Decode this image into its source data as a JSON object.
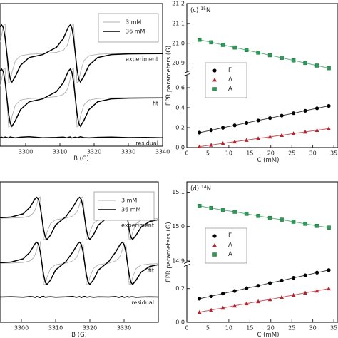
{
  "chart_data": [
    {
      "type": "line",
      "x": [
        3292.5,
        3293,
        3293.5,
        3294,
        3294.5,
        3295,
        3295.5,
        3296,
        3297,
        3298.5,
        3301,
        3305,
        3309,
        3311,
        3312,
        3312.5,
        3313,
        3313.5,
        3314,
        3314.5,
        3315,
        3315.5,
        3316,
        3317,
        3318.5,
        3321,
        3325,
        3330,
        3335,
        3340
      ],
      "xlim": [
        3292.5,
        3340
      ],
      "xticks": [
        3300,
        3310,
        3320,
        3330,
        3340
      ],
      "xlabel": "B (G)",
      "ylim": [
        0,
        100
      ],
      "legend": "upper right",
      "series": [
        {
          "name": "3 mM",
          "color": "#b0b0b0",
          "values": [
            73.1,
            78.1,
            84.8,
            85.4,
            65,
            44.6,
            45.2,
            51.9,
            59.9,
            63.4,
            64.4,
            64.9,
            65.8,
            67.2,
            70.1,
            73.1,
            78.1,
            84.8,
            85.4,
            65,
            44.6,
            45.2,
            51.9,
            59.9,
            63.4,
            64.4,
            64.9,
            65,
            65,
            65
          ]
        },
        {
          "name": "36 mM",
          "color": "#000000",
          "values": [
            83.7,
            85,
            83,
            76,
            65,
            54,
            47,
            45,
            49,
            56.7,
            62.1,
            64.2,
            69.3,
            75.5,
            81,
            83.7,
            85,
            83,
            76,
            65,
            54,
            47,
            45,
            49,
            56.7,
            62.1,
            64.2,
            64.7,
            64.8,
            64.9
          ]
        }
      ],
      "fit_series": [
        {
          "color": "#b0b0b0",
          "values": [
            42.1,
            47.1,
            53.8,
            54.4,
            34,
            13.6,
            14.2,
            20.9,
            28.9,
            32.4,
            33.4,
            33.9,
            34.8,
            36.2,
            39.1,
            42.1,
            47.1,
            53.8,
            54.4,
            34,
            13.6,
            14.2,
            20.9,
            28.9,
            32.4,
            33.4,
            33.9,
            34,
            34,
            34
          ]
        },
        {
          "color": "#000000",
          "values": [
            52.7,
            54,
            52,
            45,
            34,
            23,
            16,
            14,
            18,
            25.7,
            31.1,
            33.2,
            38.3,
            44.5,
            50,
            52.7,
            54,
            52,
            45,
            34,
            23,
            16,
            14,
            18,
            25.7,
            31.1,
            33.2,
            33.7,
            33.8,
            33.9
          ]
        }
      ],
      "residual": {
        "color": "#000000",
        "values": [
          6,
          6.3,
          5.8,
          6.4,
          6.1,
          5.7,
          6.5,
          6.2,
          5.8,
          6.3,
          6.6,
          5.9,
          6.1,
          6.4,
          5.8,
          6.2,
          6.5,
          5.7,
          6.1,
          6.3,
          5.9,
          6.2,
          6.6,
          6,
          5.8,
          6.2,
          6.4,
          6,
          6.1,
          5.9
        ]
      },
      "annotations": [
        "experiment",
        "fit",
        "residual"
      ]
    },
    {
      "type": "scatter",
      "label": "(c)",
      "isotope": {
        "mass": "15",
        "symbol": "N"
      },
      "x": [
        3,
        5.8,
        8.6,
        11.4,
        14.2,
        17,
        19.8,
        22.6,
        25.4,
        28.2,
        31,
        33.8
      ],
      "xlim": [
        0,
        36
      ],
      "xticks": [
        0,
        5,
        10,
        15,
        20,
        25,
        30,
        35
      ],
      "xlabel": "C (mM)",
      "ylabel": "EPR parameters (G)",
      "ylim": [
        0,
        0.7
      ],
      "yticks": [
        {
          "value": 0,
          "label": "0.0"
        },
        0.2,
        0.4,
        0.6
      ],
      "ylim_upper": [
        20.87,
        21.2
      ],
      "yticks_upper": [
        20.9,
        {
          "value": 21,
          "label": "21.0"
        },
        21.1,
        21.2
      ],
      "legend": "center left",
      "series": [
        {
          "name": "Γ",
          "color": "#000000",
          "marker": "circle",
          "values": [
            0.15,
            0.174,
            0.199,
            0.223,
            0.247,
            0.272,
            0.296,
            0.321,
            0.345,
            0.369,
            0.394,
            0.418
          ]
        },
        {
          "name": "Λ",
          "color": "#b0262e",
          "marker": "triangle",
          "values": [
            0.01,
            0.026,
            0.043,
            0.059,
            0.075,
            0.092,
            0.108,
            0.124,
            0.141,
            0.157,
            0.174,
            0.19
          ]
        },
        {
          "name": "A",
          "color": "#2f9a58",
          "marker": "square",
          "axis": "y_upper",
          "values": [
            21.018,
            21.005,
            20.992,
            20.979,
            20.966,
            20.953,
            20.94,
            20.927,
            20.914,
            20.901,
            20.888,
            20.875
          ]
        }
      ]
    },
    {
      "type": "line",
      "x": [
        3293.75,
        3297,
        3300.5,
        3302.5,
        3303.5,
        3304,
        3304.5,
        3305,
        3305.5,
        3306,
        3306.5,
        3307,
        3307.5,
        3308.5,
        3310,
        3313,
        3315,
        3316,
        3316.5,
        3317,
        3317.5,
        3318,
        3318.5,
        3319,
        3319.5,
        3320,
        3321,
        3322.5,
        3325.5,
        3327.5,
        3328.5,
        3329,
        3329.5,
        3330,
        3330.5,
        3331,
        3331.5,
        3332,
        3332.5,
        3333.5,
        3335,
        3337.5,
        3340
      ],
      "xlim": [
        3293.75,
        3340
      ],
      "xticks": [
        3300,
        3310,
        3320,
        3330
      ],
      "xlabel": "B (G)",
      "ylim": [
        0,
        100
      ],
      "legend": "upper right",
      "series": [
        {
          "name": "3 mM",
          "color": "#b0b0b0",
          "values": [
            74.1,
            74.2,
            74.6,
            75.7,
            77.8,
            80.1,
            83.8,
            88.9,
            89.3,
            74,
            58.7,
            59.1,
            64.2,
            70.2,
            73,
            74.1,
            75.7,
            77.8,
            80.1,
            83.8,
            88.9,
            89.3,
            74,
            58.7,
            59.1,
            64.2,
            70.2,
            73,
            74.1,
            75.7,
            77.8,
            80.1,
            83.8,
            88.9,
            89.3,
            74,
            58.7,
            59.1,
            64.2,
            70.2,
            72.8,
            73.5,
            73.8
          ]
        },
        {
          "name": "36 mM",
          "color": "#000000",
          "values": [
            74.4,
            74.9,
            77.2,
            81.9,
            86,
            88,
            89,
            87.5,
            82.3,
            74,
            65.7,
            60.5,
            59,
            62,
            69.3,
            75.2,
            81.9,
            86,
            88,
            89,
            87.5,
            82.3,
            74,
            65.7,
            60.5,
            59,
            62,
            69.3,
            75.2,
            81.9,
            86,
            88,
            89,
            87.5,
            82.3,
            74,
            65.7,
            60.5,
            59,
            62,
            67.8,
            71.8,
            73
          ]
        }
      ],
      "fit_series": [
        {
          "color": "#b0b0b0",
          "values": [
            42.1,
            42.2,
            42.6,
            43.7,
            45.8,
            48.1,
            51.8,
            56.9,
            57.3,
            42,
            26.7,
            27.1,
            32.2,
            38.2,
            41,
            42.1,
            43.7,
            45.8,
            48.1,
            51.8,
            56.9,
            57.3,
            42,
            26.7,
            27.1,
            32.2,
            38.2,
            41,
            42.1,
            43.7,
            45.8,
            48.1,
            51.8,
            56.9,
            57.3,
            42,
            26.7,
            27.1,
            32.2,
            38.2,
            40.8,
            41.5,
            41.8
          ]
        },
        {
          "color": "#000000",
          "values": [
            42.4,
            42.9,
            45.2,
            49.9,
            54,
            56,
            57,
            55.5,
            50.3,
            42,
            33.7,
            28.5,
            27,
            30,
            37.3,
            43.2,
            49.9,
            54,
            56,
            57,
            55.5,
            50.3,
            42,
            33.7,
            28.5,
            27,
            30,
            37.3,
            43.2,
            49.9,
            54,
            56,
            57,
            55.5,
            50.3,
            42,
            33.7,
            28.5,
            27,
            30,
            35.8,
            39.8,
            41
          ]
        }
      ],
      "residual": {
        "color": "#000000",
        "values": [
          18,
          18.2,
          17.9,
          18.3,
          18.1,
          17.7,
          18.4,
          18,
          17.6,
          18.3,
          18.5,
          17.8,
          18,
          18.2,
          17.9,
          18.1,
          18.4,
          17.8,
          18,
          18.3,
          17.6,
          18.2,
          18.5,
          17.9,
          18,
          18.2,
          17.8,
          18.1,
          18,
          18.3,
          17.7,
          18.2,
          18.4,
          17.8,
          18,
          18.3,
          17.9,
          18.1,
          18.2,
          17.8,
          18,
          18.1,
          18
        ]
      },
      "annotations": [
        "experiment",
        "fit",
        "residual"
      ]
    },
    {
      "type": "scatter",
      "label": "(d)",
      "isotope": {
        "mass": "14",
        "symbol": "N"
      },
      "x": [
        3,
        5.8,
        8.6,
        11.4,
        14.2,
        17,
        19.8,
        22.6,
        25.4,
        28.2,
        31,
        33.8
      ],
      "xlim": [
        0,
        36
      ],
      "xticks": [
        0,
        5,
        10,
        15,
        20,
        25,
        30,
        35
      ],
      "xlabel": "C (mM)",
      "ylabel": "EPR parameters (G)",
      "ylim": [
        0,
        0.33
      ],
      "yticks": [
        {
          "value": 0,
          "label": "0.0"
        },
        0.2
      ],
      "ylim_upper": [
        14.9,
        15.13
      ],
      "yticks_upper": [
        14.9,
        {
          "value": 15,
          "label": "15.0"
        },
        15.1
      ],
      "legend": "center left",
      "series": [
        {
          "name": "Γ",
          "color": "#000000",
          "marker": "circle",
          "values": [
            0.14,
            0.155,
            0.171,
            0.186,
            0.202,
            0.217,
            0.233,
            0.248,
            0.264,
            0.279,
            0.295,
            0.31
          ]
        },
        {
          "name": "Λ",
          "color": "#b0262e",
          "marker": "triangle",
          "values": [
            0.06,
            0.073,
            0.085,
            0.098,
            0.111,
            0.124,
            0.136,
            0.149,
            0.162,
            0.175,
            0.187,
            0.2
          ]
        },
        {
          "name": "A",
          "color": "#2f9a58",
          "marker": "square",
          "axis": "y_upper",
          "values": [
            15.06,
            15.054,
            15.048,
            15.043,
            15.037,
            15.031,
            15.025,
            15.02,
            15.014,
            15.008,
            15.002,
            14.997
          ]
        }
      ]
    }
  ]
}
